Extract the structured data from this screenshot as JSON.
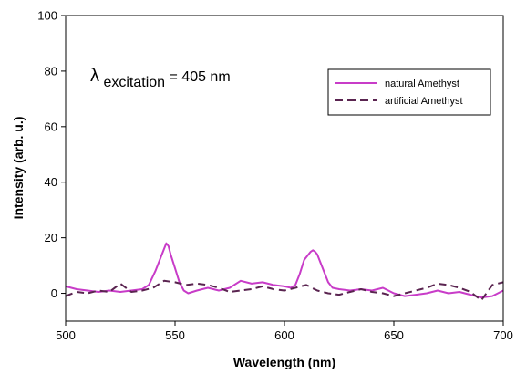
{
  "chart_data": {
    "type": "line",
    "xlabel": "Wavelength (nm)",
    "ylabel": "Intensity (arb. u.)",
    "xlim": [
      500,
      700
    ],
    "ylim": [
      -10,
      100
    ],
    "xticks": [
      500,
      550,
      600,
      650,
      700
    ],
    "yticks": [
      0,
      20,
      40,
      60,
      80,
      100
    ],
    "grid": false,
    "legend_position": "top-right",
    "annotation": {
      "lambda": "λ",
      "subscript": "excitation",
      "text": "= 405 nm"
    },
    "series": [
      {
        "name": "natural Amethyst",
        "color": "#c83cc8",
        "style": "solid",
        "x": [
          500,
          505,
          510,
          515,
          520,
          525,
          530,
          535,
          538,
          541,
          543,
          545,
          546,
          547,
          548,
          550,
          552,
          554,
          556,
          558,
          560,
          565,
          570,
          575,
          580,
          585,
          590,
          595,
          600,
          603,
          605,
          607,
          609,
          611,
          612,
          613,
          614,
          615,
          616,
          618,
          620,
          622,
          625,
          630,
          635,
          640,
          645,
          650,
          655,
          660,
          665,
          670,
          675,
          680,
          685,
          690,
          695,
          700
        ],
        "y": [
          2.5,
          1.5,
          1,
          0.5,
          1,
          0.5,
          1,
          1.5,
          3,
          8,
          12,
          16,
          18,
          17,
          14,
          9,
          4,
          1,
          0,
          0.5,
          1,
          2,
          1,
          2,
          4.5,
          3.5,
          4,
          3,
          2.5,
          2,
          3,
          7,
          12,
          14,
          15,
          15.5,
          15,
          14,
          12,
          8,
          4,
          2,
          1.5,
          1,
          1.5,
          1,
          2,
          0,
          -1,
          -0.5,
          0,
          1,
          0,
          0.5,
          -0.5,
          -1.5,
          -1,
          1
        ]
      },
      {
        "name": "artificial Amethyst",
        "color": "#5a2450",
        "style": "dashed",
        "x": [
          500,
          505,
          510,
          515,
          520,
          525,
          530,
          535,
          540,
          545,
          550,
          555,
          560,
          565,
          570,
          575,
          580,
          585,
          590,
          595,
          600,
          605,
          610,
          615,
          620,
          625,
          630,
          635,
          640,
          645,
          650,
          655,
          660,
          665,
          670,
          675,
          680,
          685,
          690,
          695,
          700
        ],
        "y": [
          -1,
          0.5,
          0,
          1,
          0.5,
          3.5,
          0.5,
          1,
          2,
          4.5,
          4,
          3,
          3.5,
          3,
          2,
          0.5,
          1,
          1.5,
          2.5,
          1.5,
          1,
          2,
          3,
          1,
          0,
          -0.5,
          0.5,
          1.5,
          0.5,
          0,
          -1,
          0,
          1,
          2,
          3.5,
          3,
          2,
          0.5,
          -2.5,
          3,
          4
        ]
      }
    ]
  }
}
